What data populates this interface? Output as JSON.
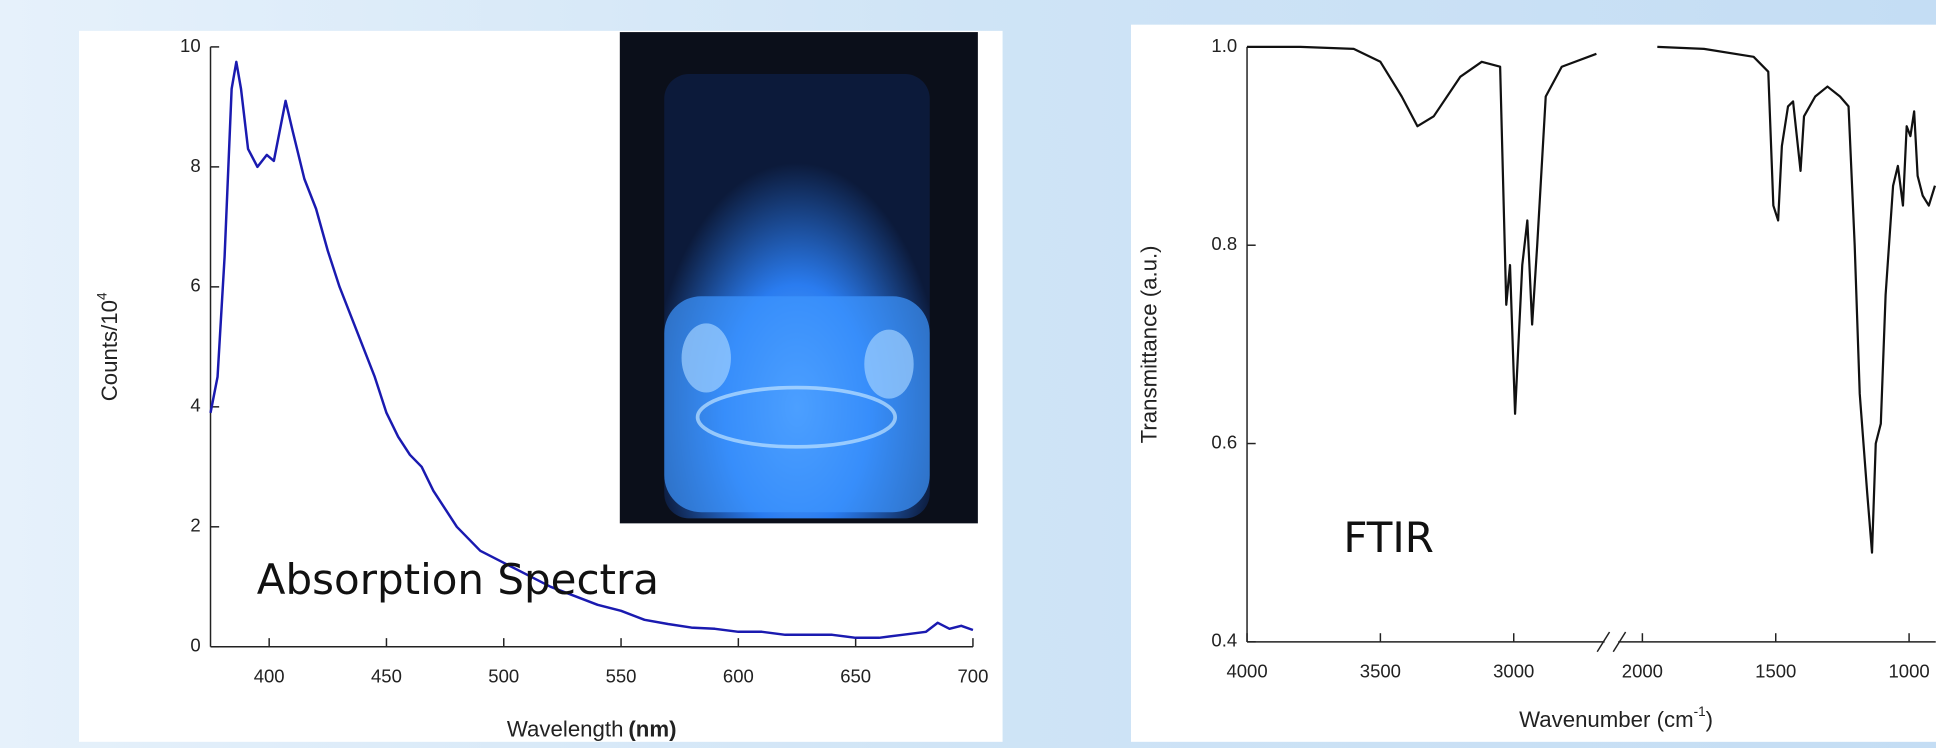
{
  "chart_data": [
    {
      "type": "line",
      "annotation": "Absorption Spectra",
      "xlabel": "Wavelength",
      "xlabel_unit": "(nm)",
      "ylabel": "Counts/10",
      "ylabel_sup": "4",
      "color": "#1a1ab0",
      "x": [
        375,
        378,
        381,
        384,
        386,
        388,
        391,
        395,
        399,
        402,
        405,
        407,
        410,
        415,
        420,
        425,
        430,
        435,
        440,
        445,
        450,
        455,
        460,
        465,
        470,
        475,
        480,
        485,
        490,
        495,
        500,
        510,
        520,
        530,
        540,
        550,
        560,
        570,
        580,
        590,
        600,
        610,
        620,
        630,
        640,
        650,
        660,
        670,
        680,
        685,
        690,
        695,
        700
      ],
      "values": [
        3.9,
        4.5,
        6.5,
        9.3,
        9.75,
        9.3,
        8.3,
        8.0,
        8.2,
        8.1,
        8.7,
        9.1,
        8.6,
        7.8,
        7.3,
        6.6,
        6.0,
        5.5,
        5.0,
        4.5,
        3.9,
        3.5,
        3.2,
        3.0,
        2.6,
        2.3,
        2.0,
        1.8,
        1.6,
        1.5,
        1.4,
        1.2,
        1.0,
        0.85,
        0.7,
        0.6,
        0.45,
        0.38,
        0.32,
        0.3,
        0.25,
        0.25,
        0.2,
        0.2,
        0.2,
        0.15,
        0.15,
        0.2,
        0.25,
        0.4,
        0.3,
        0.35,
        0.28
      ],
      "xlim": [
        375,
        700
      ],
      "xticks": [
        400,
        450,
        500,
        550,
        600,
        650,
        700
      ],
      "ylim": [
        0,
        10
      ],
      "yticks": [
        0,
        2,
        4,
        6,
        8,
        10
      ]
    },
    {
      "type": "line",
      "annotation": "FTIR",
      "xlabel": "Wavenumber (cm",
      "xlabel_sup": "-1",
      "xlabel_end": ")",
      "ylabel": "Transmittance (a.u.)",
      "color": "#111111",
      "x": [
        4000,
        3800,
        3600,
        3500,
        3420,
        3361,
        3300,
        3200,
        3120,
        3051,
        3028,
        3014,
        2995,
        2968,
        2949,
        2931,
        2912,
        2880,
        2820,
        2690,
        2400,
        1944,
        1769,
        1583,
        1528,
        1509,
        1491,
        1477,
        1454,
        1435,
        1421,
        1407,
        1394,
        1352,
        1306,
        1259,
        1227,
        1204,
        1185,
        1157,
        1139,
        1125,
        1106,
        1088,
        1060,
        1042,
        1023,
        1009,
        995,
        981,
        968,
        949,
        926,
        903
      ],
      "values": [
        1.0,
        1.0,
        0.998,
        0.985,
        0.95,
        0.92,
        0.93,
        0.97,
        0.985,
        0.98,
        0.74,
        0.78,
        0.63,
        0.78,
        0.825,
        0.72,
        0.8,
        0.95,
        0.98,
        0.993,
        null,
        1.0,
        0.998,
        0.99,
        0.975,
        0.84,
        0.825,
        0.9,
        0.94,
        0.945,
        0.91,
        0.875,
        0.93,
        0.95,
        0.96,
        0.95,
        0.94,
        0.8,
        0.65,
        0.55,
        0.49,
        0.6,
        0.62,
        0.75,
        0.86,
        0.88,
        0.84,
        0.92,
        0.91,
        0.935,
        0.87,
        0.85,
        0.84,
        0.86
      ],
      "xlim": [
        4000,
        900
      ],
      "xbreak": [
        2650,
        2100
      ],
      "xticks": [
        4000,
        3500,
        3000,
        2000,
        1500,
        1000
      ],
      "ylim": [
        0.4,
        1.0
      ],
      "yticks": [
        0.4,
        0.6,
        0.8,
        {
          "value": 1.0,
          "label": "1.0"
        }
      ]
    }
  ]
}
